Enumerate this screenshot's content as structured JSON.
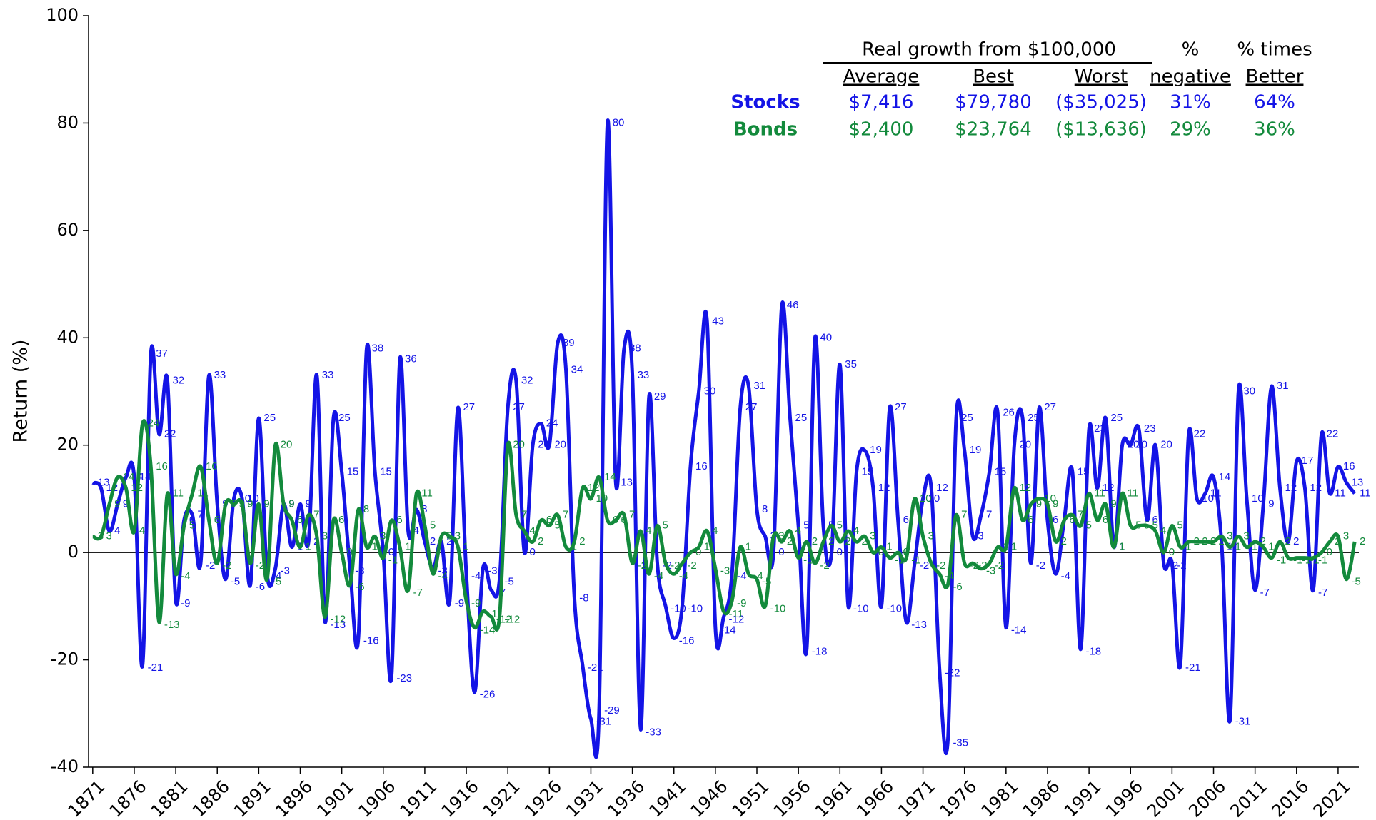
{
  "chart_data": {
    "type": "line",
    "y_label": "Return (%)",
    "x": [
      1871,
      1872,
      1873,
      1874,
      1875,
      1876,
      1877,
      1878,
      1879,
      1880,
      1881,
      1882,
      1883,
      1884,
      1885,
      1886,
      1887,
      1888,
      1889,
      1890,
      1891,
      1892,
      1893,
      1894,
      1895,
      1896,
      1897,
      1898,
      1899,
      1900,
      1901,
      1902,
      1903,
      1904,
      1905,
      1906,
      1907,
      1908,
      1909,
      1910,
      1911,
      1912,
      1913,
      1914,
      1915,
      1916,
      1917,
      1918,
      1919,
      1920,
      1921,
      1922,
      1923,
      1924,
      1925,
      1926,
      1927,
      1928,
      1929,
      1930,
      1931,
      1932,
      1933,
      1934,
      1935,
      1936,
      1937,
      1938,
      1939,
      1940,
      1941,
      1942,
      1943,
      1944,
      1945,
      1946,
      1947,
      1948,
      1949,
      1950,
      1951,
      1952,
      1953,
      1954,
      1955,
      1956,
      1957,
      1958,
      1959,
      1960,
      1961,
      1962,
      1963,
      1964,
      1965,
      1966,
      1967,
      1968,
      1969,
      1970,
      1971,
      1972,
      1973,
      1974,
      1975,
      1976,
      1977,
      1978,
      1979,
      1980,
      1981,
      1982,
      1983,
      1984,
      1985,
      1986,
      1987,
      1988,
      1989,
      1990,
      1991,
      1992,
      1993,
      1994,
      1995,
      1996,
      1997,
      1998,
      1999,
      2000,
      2001,
      2002,
      2003,
      2004,
      2005,
      2006,
      2007,
      2008,
      2009,
      2010,
      2011,
      2012,
      2013,
      2014,
      2015,
      2016,
      2017,
      2018,
      2019,
      2020,
      2021,
      2022,
      2023
    ],
    "series": [
      {
        "name": "Stocks",
        "color": "#1414e6",
        "values": [
          13,
          12,
          4,
          9,
          14,
          14,
          -21,
          37,
          22,
          32,
          -9,
          6,
          7,
          -2,
          33,
          9,
          -5,
          10,
          10,
          -6,
          25,
          -4,
          -3,
          9,
          1,
          9,
          2,
          33,
          -13,
          25,
          15,
          -3,
          -16,
          38,
          15,
          0,
          -23,
          36,
          4,
          8,
          2,
          -3,
          2,
          -9,
          27,
          -4,
          -26,
          -3,
          -7,
          -5,
          27,
          32,
          0,
          20,
          24,
          20,
          39,
          34,
          -8,
          -21,
          -31,
          -29,
          80,
          13,
          38,
          33,
          -33,
          29,
          -2,
          -10,
          -16,
          -10,
          16,
          30,
          43,
          -14,
          -12,
          -4,
          27,
          31,
          8,
          3,
          0,
          46,
          25,
          5,
          -18,
          40,
          5,
          0,
          35,
          -10,
          15,
          19,
          12,
          -10,
          27,
          6,
          -13,
          -2,
          10,
          12,
          -22,
          -35,
          25,
          19,
          3,
          7,
          15,
          26,
          -14,
          20,
          25,
          -2,
          27,
          6,
          -4,
          6,
          15,
          -18,
          23,
          12,
          25,
          1,
          20,
          20,
          23,
          6,
          20,
          -2,
          -2,
          -21,
          22,
          10,
          11,
          14,
          1,
          -31,
          30,
          10,
          -7,
          9,
          31,
          12,
          2,
          17,
          12,
          -7,
          22,
          11,
          16,
          13,
          11
        ]
      },
      {
        "name": "Bonds",
        "color": "#138a3c",
        "values": [
          3,
          3,
          9,
          14,
          12,
          4,
          24,
          16,
          -13,
          11,
          -4,
          5,
          11,
          16,
          6,
          -2,
          9,
          9,
          9,
          -2,
          9,
          -5,
          20,
          9,
          6,
          1,
          7,
          3,
          -12,
          6,
          0,
          -6,
          8,
          1,
          3,
          -1,
          6,
          1,
          -7,
          11,
          5,
          -4,
          3,
          3,
          1,
          -9,
          -14,
          -11,
          -12,
          -12,
          20,
          7,
          4,
          2,
          6,
          5,
          7,
          1,
          2,
          12,
          10,
          14,
          6,
          6,
          7,
          -2,
          4,
          -4,
          5,
          -2,
          -4,
          -2,
          0,
          1,
          4,
          -3,
          -11,
          -9,
          1,
          -4,
          -5,
          -10,
          3,
          2,
          4,
          -1,
          2,
          -2,
          2,
          5,
          2,
          4,
          2,
          3,
          0,
          1,
          -1,
          0,
          -1,
          10,
          3,
          -2,
          -4,
          -6,
          7,
          -2,
          -2,
          -3,
          -2,
          1,
          1,
          12,
          6,
          9,
          10,
          9,
          2,
          6,
          7,
          5,
          11,
          6,
          9,
          1,
          11,
          5,
          5,
          5,
          4,
          0,
          5,
          1,
          2,
          2,
          2,
          2,
          3,
          1,
          3,
          1,
          2,
          1,
          -1,
          2,
          -1,
          -1,
          -1,
          -1,
          0,
          2,
          3,
          -5,
          2
        ]
      }
    ],
    "xlim": [
      1870.5,
      2023.5
    ],
    "xticks": [
      1871,
      1876,
      1881,
      1886,
      1891,
      1896,
      1901,
      1906,
      1911,
      1916,
      1921,
      1926,
      1931,
      1936,
      1941,
      1946,
      1951,
      1956,
      1961,
      1966,
      1971,
      1976,
      1981,
      1986,
      1991,
      1996,
      2001,
      2006,
      2011,
      2016,
      2021
    ],
    "ylim": [
      -40,
      100
    ],
    "yticks": [
      -40,
      -20,
      0,
      20,
      40,
      60,
      80,
      100
    ],
    "table": {
      "title": "Real growth from $100,000",
      "top_headers": [
        "%",
        "% times"
      ],
      "columns": [
        "Average",
        "Best",
        "Worst",
        "negative",
        "Better"
      ],
      "rows": [
        {
          "label": "Stocks",
          "cells": [
            "$7,416",
            "$79,780",
            "($35,025)",
            "31%",
            "64%"
          ]
        },
        {
          "label": "Bonds",
          "cells": [
            "$2,400",
            "$23,764",
            "($13,636)",
            "29%",
            "36%"
          ]
        }
      ]
    }
  }
}
